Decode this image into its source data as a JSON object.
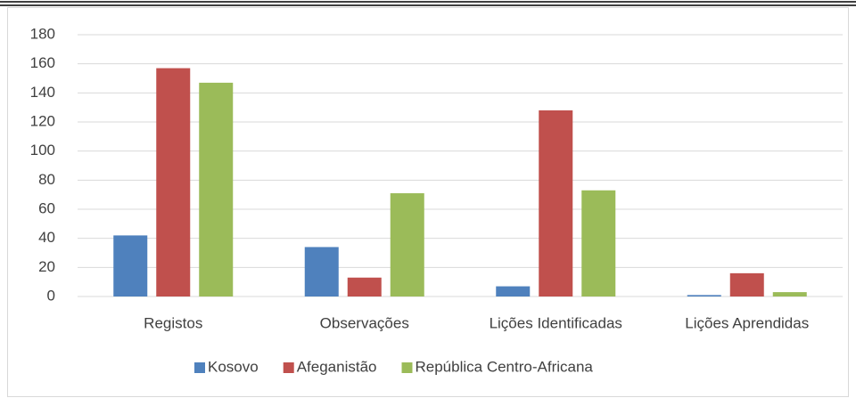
{
  "chart_data": {
    "type": "bar",
    "categories": [
      "Registos",
      "Observações",
      "Lições Identificadas",
      "Lições Aprendidas"
    ],
    "series": [
      {
        "name": "Kosovo",
        "color": "#4f81bd",
        "values": [
          42,
          34,
          7,
          1
        ]
      },
      {
        "name": "Afeganistão",
        "color": "#c0504d",
        "values": [
          157,
          13,
          128,
          16
        ]
      },
      {
        "name": "República Centro-Africana",
        "color": "#9bbb59",
        "values": [
          147,
          71,
          73,
          3
        ]
      }
    ],
    "ylim": [
      0,
      180
    ],
    "yticks": [
      0,
      20,
      40,
      60,
      80,
      100,
      120,
      140,
      160,
      180
    ],
    "grid": true,
    "legend": "bottom"
  }
}
